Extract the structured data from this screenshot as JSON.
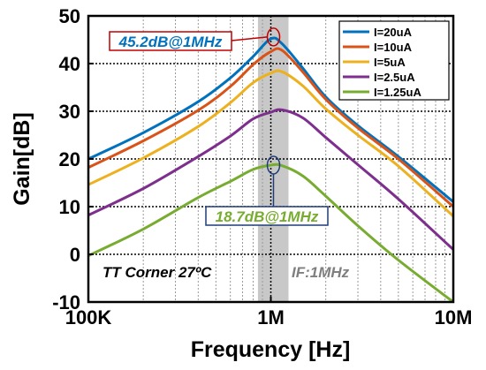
{
  "chart_data": {
    "type": "line",
    "title": "",
    "xlabel": "Frequency [Hz]",
    "ylabel": "Gain[dB]",
    "xscale": "log",
    "xlim": [
      100000,
      10000000
    ],
    "ylim": [
      -10,
      50
    ],
    "xticks": [
      {
        "value": 100000,
        "label": "100K"
      },
      {
        "value": 1000000,
        "label": "1M"
      },
      {
        "value": 10000000,
        "label": "10M"
      }
    ],
    "yticks": [
      -10,
      0,
      10,
      20,
      30,
      40,
      50
    ],
    "grid": true,
    "legend_position": "top-right",
    "highlight_band": {
      "from": 850000,
      "to": 1250000,
      "color": "#c8c8c8"
    },
    "series": [
      {
        "name": "I=20uA",
        "color": "#0072bd",
        "points": [
          [
            100000,
            20
          ],
          [
            200000,
            25.5
          ],
          [
            400000,
            32
          ],
          [
            600000,
            37
          ],
          [
            800000,
            41.5
          ],
          [
            1000000,
            45.2
          ],
          [
            1150000,
            44.2
          ],
          [
            1500000,
            39
          ],
          [
            2000000,
            33
          ],
          [
            3000000,
            27
          ],
          [
            5000000,
            20.5
          ],
          [
            10000000,
            11
          ]
        ]
      },
      {
        "name": "I=10uA",
        "color": "#d95319",
        "points": [
          [
            100000,
            18.2
          ],
          [
            200000,
            23.8
          ],
          [
            400000,
            30.2
          ],
          [
            600000,
            35.2
          ],
          [
            800000,
            39.8
          ],
          [
            1000000,
            42.5
          ],
          [
            1150000,
            42.8
          ],
          [
            1500000,
            38.2
          ],
          [
            2000000,
            32.5
          ],
          [
            3000000,
            26.5
          ],
          [
            5000000,
            20
          ],
          [
            10000000,
            10
          ]
        ]
      },
      {
        "name": "I=5uA",
        "color": "#edb120",
        "points": [
          [
            100000,
            14.6
          ],
          [
            200000,
            20.2
          ],
          [
            400000,
            26.8
          ],
          [
            600000,
            31.8
          ],
          [
            800000,
            36
          ],
          [
            1000000,
            38
          ],
          [
            1150000,
            38.3
          ],
          [
            1500000,
            35.3
          ],
          [
            2000000,
            30.5
          ],
          [
            3000000,
            25
          ],
          [
            5000000,
            18.5
          ],
          [
            10000000,
            8
          ]
        ]
      },
      {
        "name": "I=2.5uA",
        "color": "#7e2f8e",
        "points": [
          [
            100000,
            8.2
          ],
          [
            200000,
            13.8
          ],
          [
            400000,
            20.5
          ],
          [
            600000,
            24.8
          ],
          [
            800000,
            28.4
          ],
          [
            1000000,
            29.8
          ],
          [
            1150000,
            30.3
          ],
          [
            1500000,
            28.6
          ],
          [
            2000000,
            24.5
          ],
          [
            3000000,
            18.8
          ],
          [
            5000000,
            11.6
          ],
          [
            10000000,
            1
          ]
        ]
      },
      {
        "name": "I=1.25uA",
        "color": "#77ac30",
        "points": [
          [
            100000,
            -0.3
          ],
          [
            200000,
            5.3
          ],
          [
            400000,
            11.9
          ],
          [
            600000,
            15.3
          ],
          [
            800000,
            17.8
          ],
          [
            1000000,
            18.7
          ],
          [
            1150000,
            18.6
          ],
          [
            1500000,
            16.4
          ],
          [
            2000000,
            12.2
          ],
          [
            3000000,
            6
          ],
          [
            5000000,
            -1.2
          ],
          [
            10000000,
            -10
          ]
        ]
      }
    ],
    "annotations": [
      {
        "text": "45.2dB@1MHz",
        "color": "#0072bd",
        "border": "#c00000",
        "target": [
          1000000,
          45.2
        ]
      },
      {
        "text": "18.7dB@1MHz",
        "color": "#77ac30",
        "border": "#1f3d7a",
        "target": [
          1000000,
          18.7
        ]
      },
      {
        "text": "TT Corner 27ºC",
        "color": "#000000"
      },
      {
        "text": "IF:1MHz",
        "color": "#7f7f7f"
      }
    ]
  }
}
